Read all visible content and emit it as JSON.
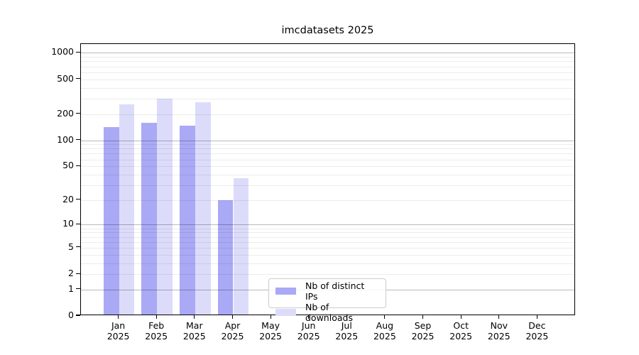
{
  "figure": {
    "title": "imcdatasets 2025",
    "background_color": "#ffffff"
  },
  "chart_data": {
    "type": "bar",
    "title": "imcdatasets 2025",
    "categories": [
      "Jan",
      "Feb",
      "Mar",
      "Apr",
      "May",
      "Jun",
      "Jul",
      "Aug",
      "Sep",
      "Oct",
      "Nov",
      "Dec"
    ],
    "x_year_label": "2025",
    "series": [
      {
        "name": "Nb of distinct IPs",
        "color": "#a9a9f5",
        "values": [
          136,
          154,
          141,
          19,
          0,
          0,
          0,
          0,
          0,
          0,
          0,
          0
        ]
      },
      {
        "name": "Nb of downloads",
        "color": "#dcdcfa",
        "values": [
          248,
          289,
          263,
          35,
          0,
          0,
          0,
          0,
          0,
          0,
          0,
          0
        ]
      }
    ],
    "yscale": "log1p",
    "ytick_values": [
      1000,
      500,
      200,
      100,
      50,
      20,
      10,
      5,
      2,
      1,
      0
    ],
    "ylim": [
      0,
      1260
    ],
    "xlabel": "",
    "ylabel": "",
    "grid": {
      "axis": "y",
      "major_at": [
        1,
        10,
        100,
        1000
      ],
      "minor_decades": true
    },
    "legend": {
      "position": "inside-bottom-left-of-center",
      "frame": true
    }
  }
}
